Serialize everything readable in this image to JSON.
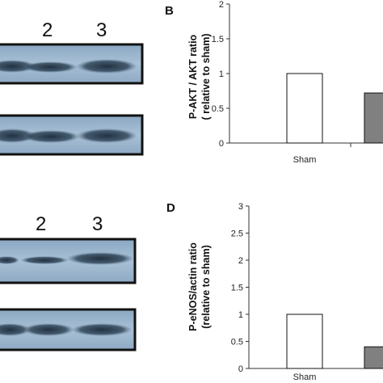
{
  "blots": {
    "top": {
      "lane_labels": [
        "2",
        "3"
      ]
    },
    "bottom": {
      "lane_labels": [
        "2",
        "3"
      ]
    }
  },
  "chart_data": [
    {
      "panel": "B",
      "type": "bar",
      "ylabel_lines": [
        "P-AKT / AKT ratio",
        "( relative to sham)"
      ],
      "ylim": [
        0,
        2
      ],
      "yticks": [
        "0",
        "0.5",
        "1",
        "1.5",
        "2"
      ],
      "ytick_values": [
        0,
        0.5,
        1,
        1.5,
        2
      ],
      "categories": [
        "Sham",
        ""
      ],
      "values": [
        1.0,
        0.72
      ],
      "colors": [
        "#ffffff",
        "#808080"
      ],
      "grid": false
    },
    {
      "panel": "D",
      "type": "bar",
      "ylabel_lines": [
        "P-eNOS/actin ratio",
        "(relative to sham)"
      ],
      "ylim": [
        0,
        3
      ],
      "yticks": [
        "0",
        "0.5",
        "1",
        "1.5",
        "2",
        "2.5",
        "3"
      ],
      "ytick_values": [
        0,
        0.5,
        1,
        1.5,
        2,
        2.5,
        3
      ],
      "categories": [
        "Sham",
        ""
      ],
      "values": [
        1.0,
        0.4
      ],
      "colors": [
        "#ffffff",
        "#808080"
      ],
      "grid": false
    }
  ]
}
